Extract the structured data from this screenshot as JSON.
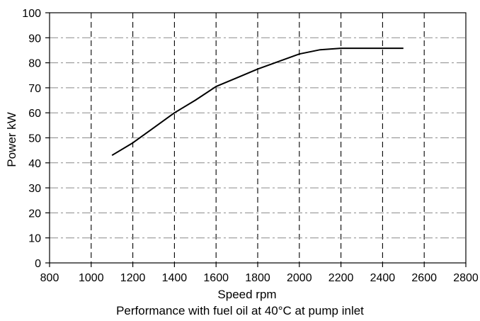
{
  "chart_data": {
    "type": "line",
    "title": "",
    "xlabel": "Speed rpm",
    "ylabel": "Power kW",
    "xlim": [
      800,
      2800
    ],
    "ylim": [
      0,
      100
    ],
    "x_ticks": [
      "800",
      "1000",
      "1200",
      "1400",
      "1600",
      "1800",
      "2000",
      "2200",
      "2400",
      "2600",
      "2800"
    ],
    "y_ticks": [
      "0",
      "10",
      "20",
      "30",
      "40",
      "50",
      "60",
      "70",
      "80",
      "90",
      "100"
    ],
    "grid": true,
    "legend": "none",
    "series": [
      {
        "color": "#000000",
        "x": [
          1100,
          1200,
          1300,
          1400,
          1500,
          1600,
          1700,
          1800,
          1900,
          2000,
          2100,
          2200,
          2300,
          2400,
          2500
        ],
        "y": [
          43,
          48,
          54,
          60,
          65,
          70.5,
          74,
          77.5,
          80.5,
          83.5,
          85.2,
          85.8,
          85.8,
          85.8,
          85.8
        ]
      }
    ]
  },
  "caption": "Performance with fuel oil at 40°C at pump inlet"
}
